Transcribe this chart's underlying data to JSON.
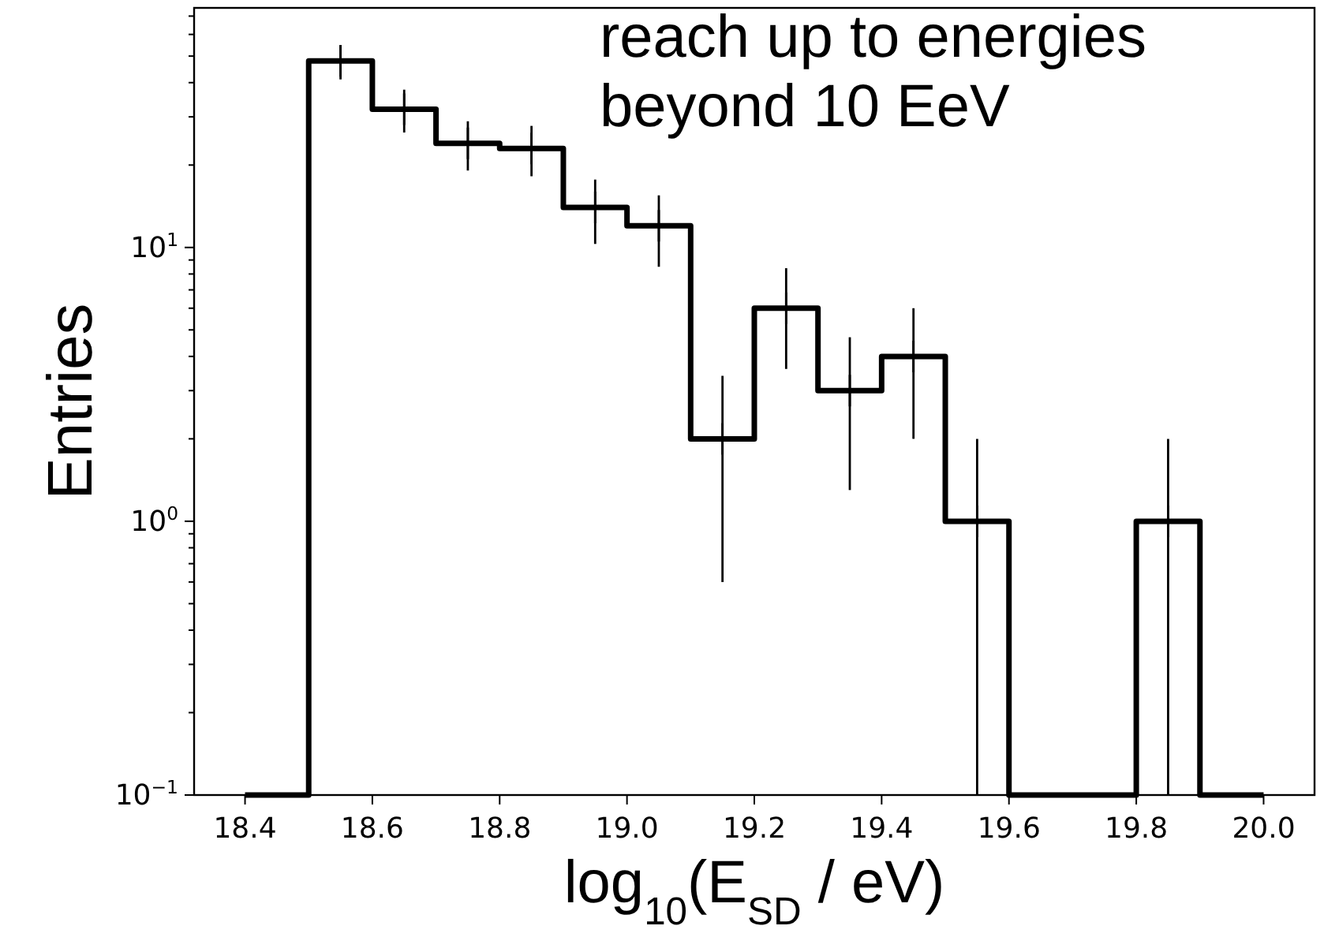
{
  "chart_data": {
    "type": "histogram",
    "xlabel": "log$_{10}$(E$_{SD}$ / eV)",
    "ylabel": "Entries",
    "color": "#000000",
    "bins": [
      18.4,
      18.5,
      18.6,
      18.7,
      18.8,
      18.9,
      19.0,
      19.1,
      19.2,
      19.3,
      19.4,
      19.5,
      19.6,
      19.7,
      19.8,
      19.9,
      20.0
    ],
    "values": [
      null,
      48,
      32,
      24,
      23,
      14,
      12,
      2,
      6,
      3,
      4,
      1,
      null,
      null,
      1,
      null
    ],
    "series": [
      {
        "type": "scatter",
        "marker": "cross",
        "color": "#000000",
        "x": [
          18.55,
          18.65,
          18.75,
          18.85,
          18.95,
          19.05,
          19.15,
          19.25,
          19.35,
          19.45,
          19.55,
          19.85
        ],
        "values": [
          48,
          32,
          24,
          23,
          14,
          12,
          2,
          6,
          3,
          4,
          1,
          1
        ],
        "errors": [
          6.9,
          5.7,
          4.9,
          4.8,
          3.7,
          3.5,
          1.4,
          2.4,
          1.7,
          2,
          [
            0.1,
            2
          ],
          [
            0.1,
            2
          ]
        ]
      }
    ],
    "xlim": [
      18.32,
      20.08
    ],
    "ylim": [
      0.1,
      75
    ],
    "log": true,
    "xticks": [
      18.4,
      18.6,
      18.8,
      {
        "value": 19.0,
        "label": "19.0"
      },
      19.2,
      19.4,
      19.6,
      19.8,
      {
        "value": 20.0,
        "label": "20.0"
      }
    ],
    "yticks": [
      {
        "value": 0.1,
        "label": "10$^{−1}$"
      },
      {
        "value": 0.2,
        "label": null
      },
      {
        "value": 0.3,
        "label": null
      },
      {
        "value": 0.4,
        "label": null
      },
      {
        "value": 0.5,
        "label": null
      },
      {
        "value": 0.6,
        "label": null
      },
      {
        "value": 0.7,
        "label": null
      },
      {
        "value": 0.8,
        "label": null
      },
      {
        "value": 0.9,
        "label": null
      },
      {
        "value": 1,
        "label": "10$^{0}$"
      },
      {
        "value": 2,
        "label": null
      },
      {
        "value": 3,
        "label": null
      },
      {
        "value": 4,
        "label": null
      },
      {
        "value": 5,
        "label": null
      },
      {
        "value": 6,
        "label": null
      },
      {
        "value": 7,
        "label": null
      },
      {
        "value": 8,
        "label": null
      },
      {
        "value": 9,
        "label": null
      },
      {
        "value": 10,
        "label": "10$^{1}$"
      },
      {
        "value": 20,
        "label": null
      },
      {
        "value": 30,
        "label": null
      },
      {
        "value": 40,
        "label": null
      },
      {
        "value": 50,
        "label": null
      },
      {
        "value": 60,
        "label": null
      },
      {
        "value": 70,
        "label": null
      }
    ],
    "annotations": [
      "reach up to energies beyond 10 EeV"
    ]
  }
}
